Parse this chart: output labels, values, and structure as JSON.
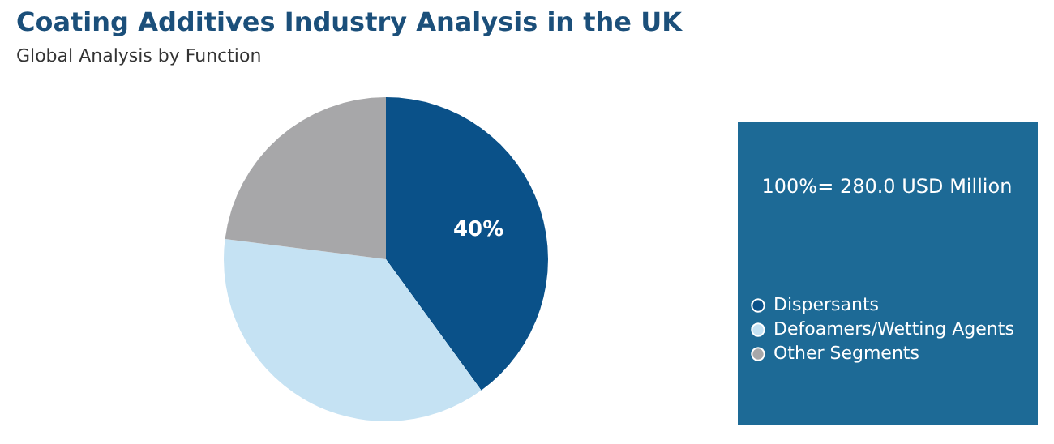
{
  "chart_data": {
    "type": "pie",
    "title": "Coating Additives Industry Analysis in the UK",
    "subtitle": "Global Analysis by Function",
    "categories": [
      "Dispersants",
      "Defoamers/Wetting Agents",
      "Other Segments"
    ],
    "legend": "right",
    "values": [
      40,
      37,
      23
    ],
    "colors": [
      "#0a5189",
      "#c5e2f3",
      "#a7a7a9"
    ],
    "value_labels": [
      "40%",
      null,
      null
    ],
    "annotations": [
      "100%= 280.0 USD Million"
    ]
  }
}
